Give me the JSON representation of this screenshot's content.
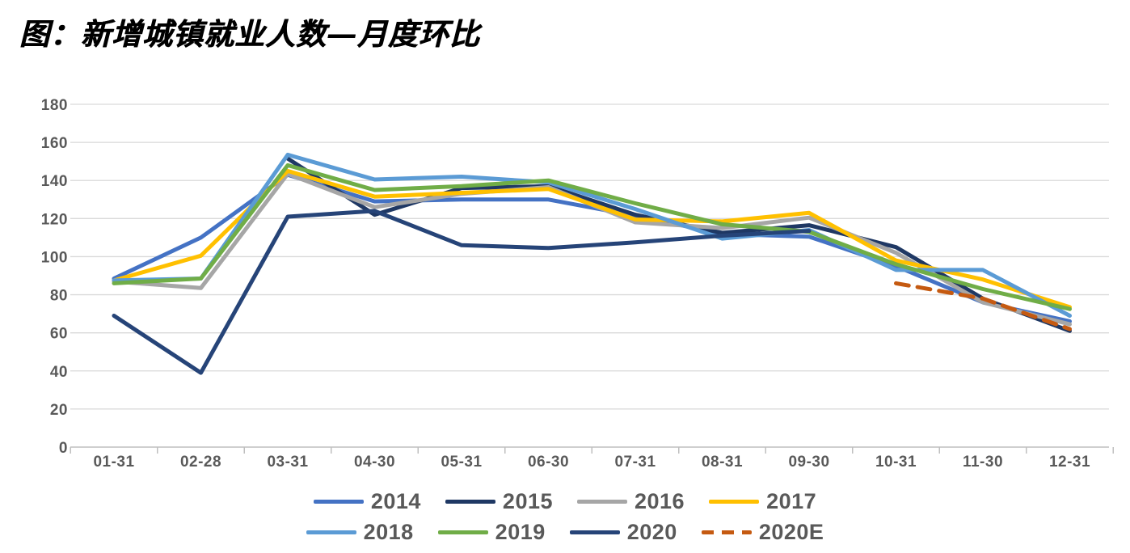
{
  "title": "图：新增城镇就业人数—月度环比",
  "colors": {
    "title_text": "#000000",
    "axis_text": "#595959",
    "gridline": "#D9D9D9",
    "axis_line": "#BFBFBF",
    "background": "#FFFFFF"
  },
  "chart_data": {
    "type": "line",
    "title": "图：新增城镇就业人数—月度环比",
    "xlabel": "",
    "ylabel": "",
    "ylim": [
      0,
      180
    ],
    "y_ticks": [
      0,
      20,
      40,
      60,
      80,
      100,
      120,
      140,
      160,
      180
    ],
    "grid": "horizontal",
    "legend_position": "bottom",
    "categories": [
      "01-31",
      "02-28",
      "03-31",
      "04-30",
      "05-31",
      "06-30",
      "07-31",
      "08-31",
      "09-30",
      "10-31",
      "11-30",
      "12-31"
    ],
    "series": [
      {
        "name": "2014",
        "color": "#4472C4",
        "dashed": false,
        "values": [
          88.5,
          110,
          143,
          129,
          130,
          130,
          121.5,
          112,
          110.5,
          95,
          76,
          66
        ]
      },
      {
        "name": "2015",
        "color": "#1F3864",
        "dashed": false,
        "values": [
          null,
          null,
          151.5,
          122,
          136,
          137,
          122,
          112.5,
          116.5,
          105,
          78,
          61
        ]
      },
      {
        "name": "2016",
        "color": "#A6A6A6",
        "dashed": false,
        "values": [
          87,
          83.5,
          143.5,
          126,
          133,
          136.5,
          118,
          115,
          120.5,
          102,
          76,
          64.5
        ]
      },
      {
        "name": "2017",
        "color": "#FFC000",
        "dashed": false,
        "values": [
          87.5,
          100.5,
          145,
          131.5,
          133.5,
          135.5,
          119.5,
          118.5,
          123,
          98,
          88,
          73.5
        ]
      },
      {
        "name": "2018",
        "color": "#5B9BD5",
        "dashed": false,
        "values": [
          87.5,
          88.5,
          153.5,
          140.5,
          142,
          139,
          125,
          109.5,
          114,
          93,
          93,
          69
        ]
      },
      {
        "name": "2019",
        "color": "#70AD47",
        "dashed": false,
        "values": [
          86,
          88.5,
          148,
          135,
          137,
          140,
          128,
          117,
          113,
          96,
          83,
          72.5
        ]
      },
      {
        "name": "2020",
        "color": "#264478",
        "dashed": false,
        "values": [
          69,
          39,
          121,
          124,
          106,
          104.5,
          107.5,
          111,
          113.5,
          null,
          null,
          null
        ]
      },
      {
        "name": "2020E",
        "color": "#C55A11",
        "dashed": true,
        "values": [
          null,
          null,
          null,
          null,
          null,
          null,
          null,
          null,
          null,
          86,
          78,
          62
        ]
      }
    ],
    "legend_rows": [
      [
        "2014",
        "2015",
        "2016",
        "2017"
      ],
      [
        "2018",
        "2019",
        "2020",
        "2020E"
      ]
    ]
  }
}
